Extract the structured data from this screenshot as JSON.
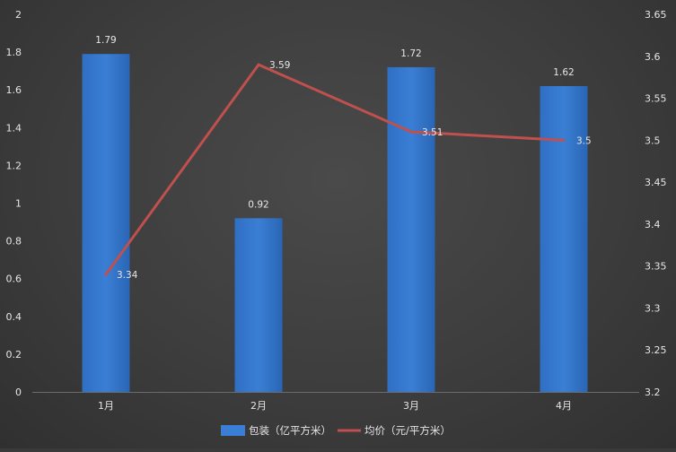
{
  "chart_data": {
    "type": "bar",
    "title": "",
    "categories": [
      "1月",
      "2月",
      "3月",
      "4月"
    ],
    "series": [
      {
        "name": "包装（亿平方米）",
        "type": "bar",
        "axis": "left",
        "values": [
          1.79,
          0.92,
          1.72,
          1.62
        ],
        "labels": [
          "1.79",
          "0.92",
          "1.72",
          "1.62"
        ],
        "color": "#3a7fd5"
      },
      {
        "name": "均价（元/平方米）",
        "type": "line",
        "axis": "right",
        "values": [
          3.34,
          3.59,
          3.51,
          3.5
        ],
        "labels": [
          "3.34",
          "3.59",
          "3.51",
          "3.5"
        ],
        "color": "#c0504d"
      }
    ],
    "y_left": {
      "ylim": [
        0,
        2
      ],
      "ticks": [
        "0",
        "0.2",
        "0.4",
        "0.6",
        "0.8",
        "1",
        "1.2",
        "1.4",
        "1.6",
        "1.8",
        "2"
      ]
    },
    "y_right": {
      "ylim": [
        3.2,
        3.65
      ],
      "ticks": [
        "3.2",
        "3.25",
        "3.3",
        "3.35",
        "3.4",
        "3.45",
        "3.5",
        "3.55",
        "3.6",
        "3.65"
      ]
    },
    "grid": false,
    "legend_position": "bottom"
  }
}
